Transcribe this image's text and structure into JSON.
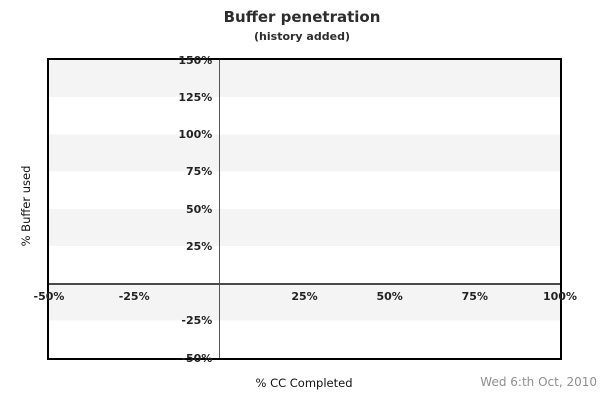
{
  "header": {
    "title": "Buffer penetration",
    "subtitle": "(history added)"
  },
  "footer": {
    "date": "Wed 6:th Oct, 2010"
  },
  "chart_data": {
    "type": "scatter",
    "title": "Buffer penetration",
    "subtitle": "(history added)",
    "xlabel": "% CC Completed",
    "ylabel": "% Buffer used",
    "xlim": [
      -50,
      100
    ],
    "ylim": [
      -50,
      150
    ],
    "x_ticks": [
      {
        "value": -50,
        "label": "-50%"
      },
      {
        "value": -25,
        "label": "-25%"
      },
      {
        "value": 25,
        "label": "25%"
      },
      {
        "value": 50,
        "label": "50%"
      },
      {
        "value": 75,
        "label": "75%"
      },
      {
        "value": 100,
        "label": "100%"
      }
    ],
    "y_ticks": [
      {
        "value": 150,
        "label": "150%"
      },
      {
        "value": 125,
        "label": "125%"
      },
      {
        "value": 100,
        "label": "100%"
      },
      {
        "value": 75,
        "label": "75%"
      },
      {
        "value": 50,
        "label": "50%"
      },
      {
        "value": 25,
        "label": "25%"
      },
      {
        "value": -25,
        "label": "-25%"
      },
      {
        "value": -50,
        "label": "-50%"
      }
    ],
    "series": [],
    "banding": {
      "interval": 25,
      "colors": [
        "#f4f4f4",
        "#ffffff"
      ],
      "start_at_top": true
    },
    "zero_lines": {
      "vertical_at_x": 0,
      "horizontal_at_y": 0
    },
    "grid": "horizontal-bands",
    "legend": "none"
  },
  "colors": {
    "title-color": "#2d2d2d",
    "tick-color": "#222222",
    "axis-title-color": "#111111",
    "date-color": "#8f8f8f",
    "plot-border-color": "#000000",
    "zero-line-v-color": "#565656",
    "zero-line-h-color": "#4a4a4a",
    "band-gray": "#f4f4f4",
    "band-white": "#ffffff",
    "background": "#ffffff"
  }
}
